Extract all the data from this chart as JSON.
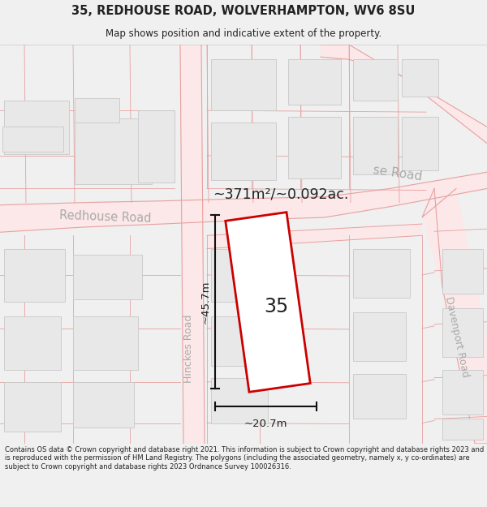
{
  "title_line1": "35, REDHOUSE ROAD, WOLVERHAMPTON, WV6 8SU",
  "title_line2": "Map shows position and indicative extent of the property.",
  "footer_text": "Contains OS data © Crown copyright and database right 2021. This information is subject to Crown copyright and database rights 2023 and is reproduced with the permission of HM Land Registry. The polygons (including the associated geometry, namely x, y co-ordinates) are subject to Crown copyright and database rights 2023 Ordnance Survey 100026316.",
  "area_label": "~371m²/~0.092ac.",
  "width_label": "~20.7m",
  "height_label": "~45.7m",
  "plot_number": "35",
  "bg_color": "#f0f0f0",
  "map_bg": "#ffffff",
  "road_fill": "#fce8e8",
  "road_line": "#e8a0a0",
  "building_fill": "#e8e8e8",
  "building_edge": "#c8c8c8",
  "highlight_color": "#cc0000",
  "text_color": "#222222",
  "road_label_color": "#aaaaaa",
  "dim_color": "#111111"
}
